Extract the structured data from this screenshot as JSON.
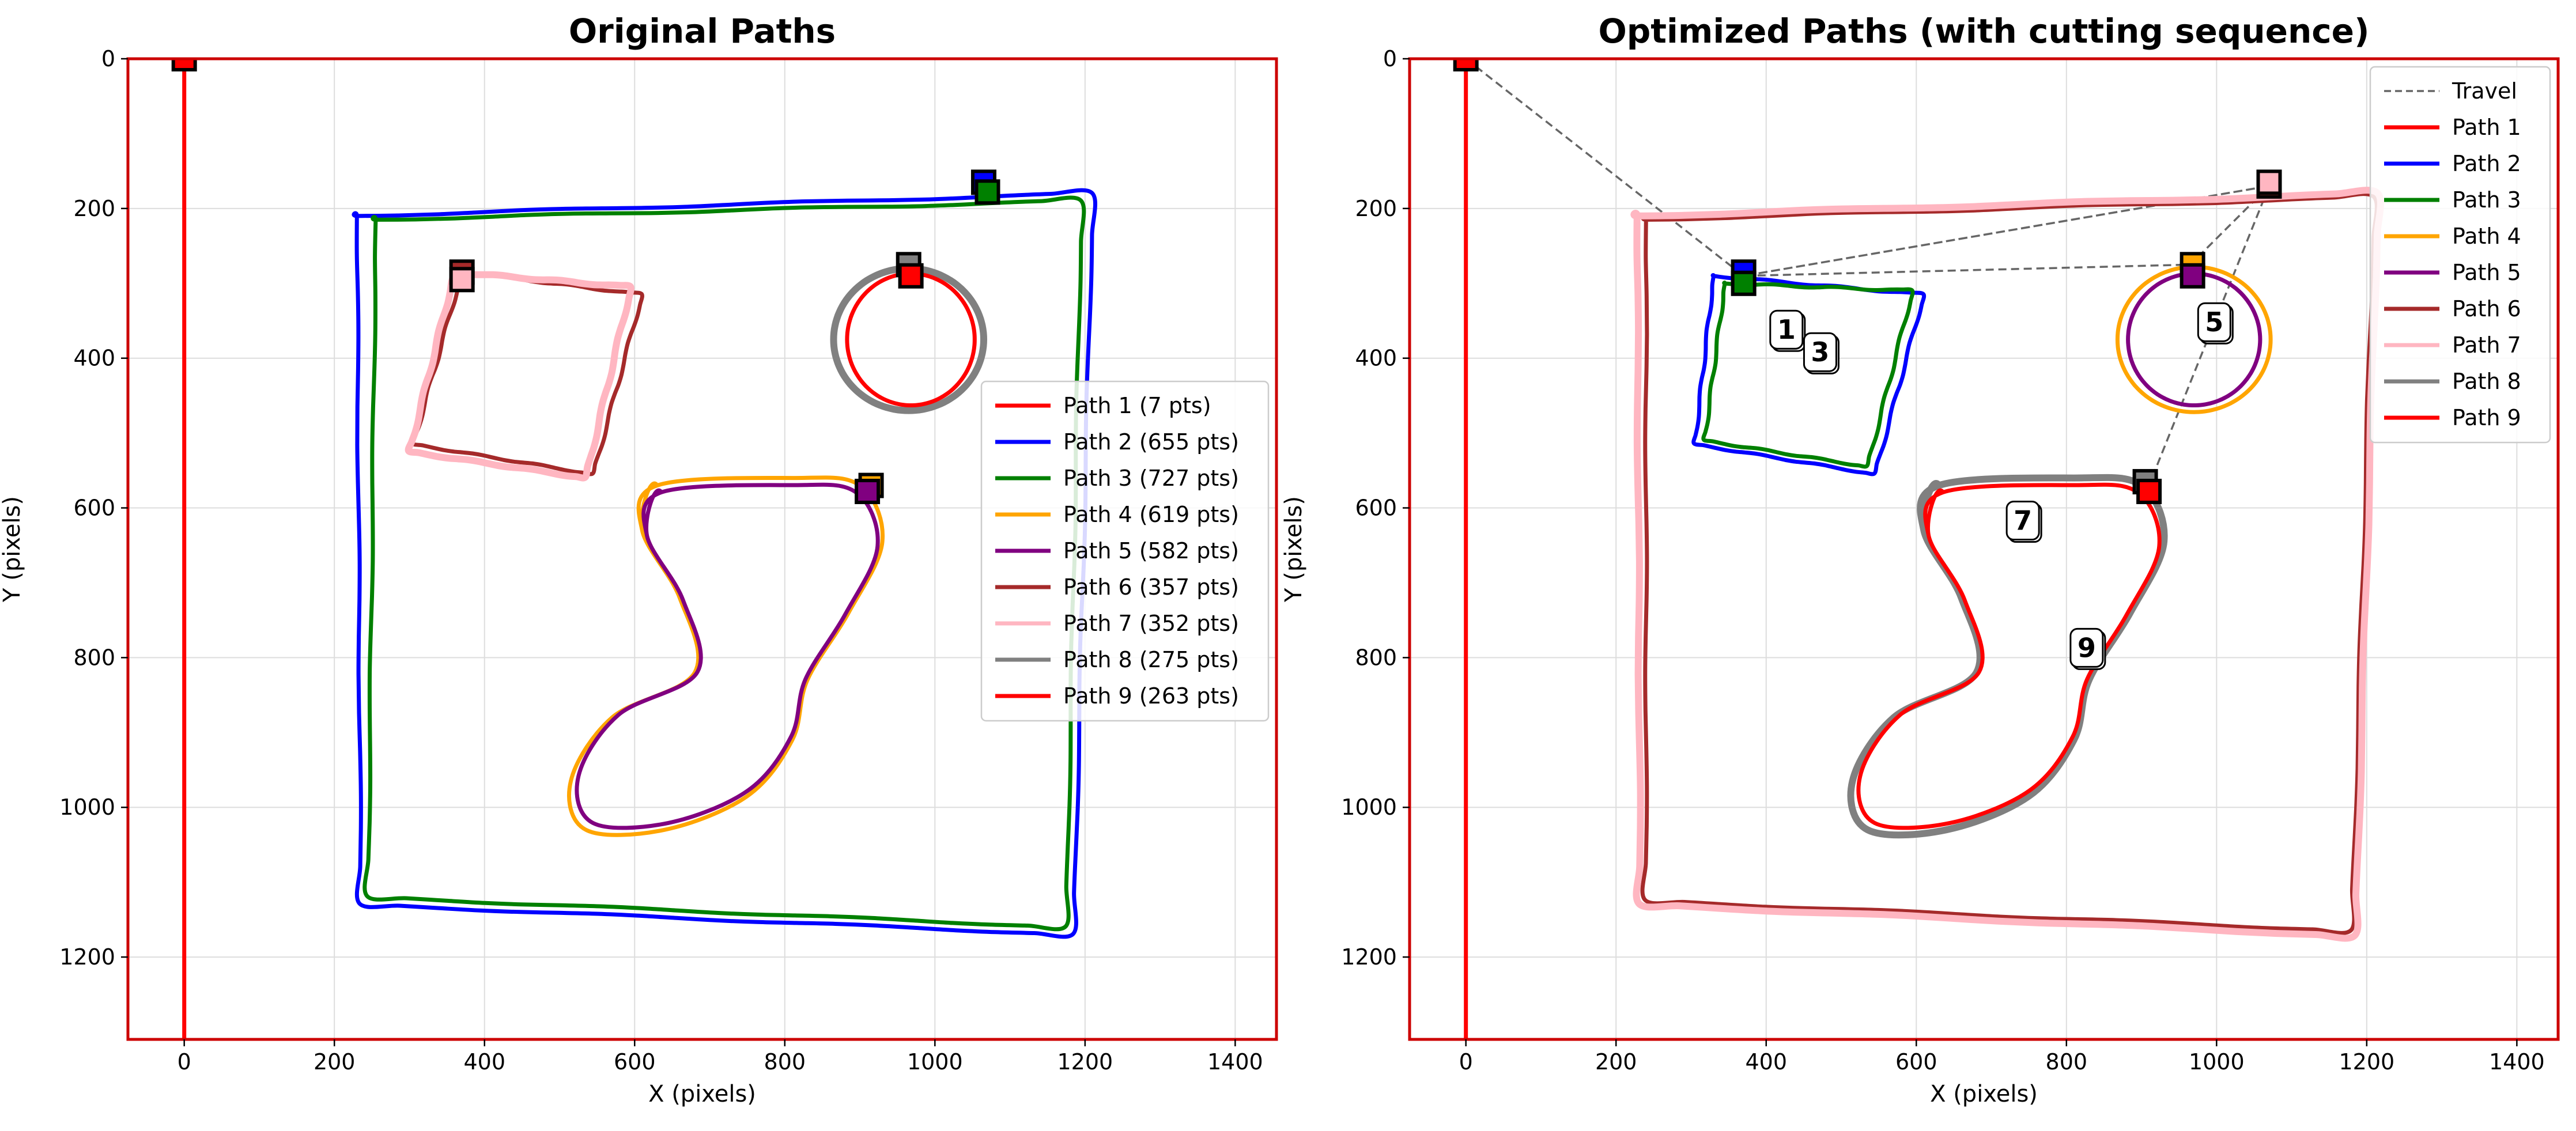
{
  "figure": {
    "panels": [
      "original",
      "optimized"
    ]
  },
  "chart_data": [
    {
      "type": "line",
      "title": "Original Paths",
      "xlabel": "X (pixels)",
      "ylabel": "Y (pixels)",
      "xlim": [
        -75,
        1455
      ],
      "ylim": [
        1310,
        0
      ],
      "x_ticks": [
        0,
        200,
        400,
        600,
        800,
        1000,
        1200,
        1400
      ],
      "y_ticks": [
        0,
        200,
        400,
        600,
        800,
        1000,
        1200
      ],
      "grid": true,
      "legend_position": "center-right",
      "frame_color": "#cc0000",
      "series": [
        {
          "name": "Path 1 (7 pts)",
          "color": "#ff0000",
          "shape": "vline",
          "x": 0,
          "y_range": [
            0,
            1310
          ]
        },
        {
          "name": "Path 2 (655 pts)",
          "color": "#0000ff",
          "shape": "rect",
          "corners": [
            [
              230,
              210
            ],
            [
              1210,
              180
            ],
            [
              1185,
              1170
            ],
            [
              235,
              1130
            ]
          ],
          "start": [
            1065,
            165
          ]
        },
        {
          "name": "Path 3 (727 pts)",
          "color": "#008000",
          "shape": "rect",
          "corners": [
            [
              255,
              215
            ],
            [
              1195,
              190
            ],
            [
              1175,
              1160
            ],
            [
              245,
              1120
            ]
          ],
          "start": [
            1070,
            178
          ]
        },
        {
          "name": "Path 4 (619 pts)",
          "color": "#ffa500",
          "shape": "bean",
          "center": [
            770,
            800
          ],
          "scale": 1.0,
          "start": [
            915,
            570
          ]
        },
        {
          "name": "Path 5 (582 pts)",
          "color": "#800080",
          "shape": "bean",
          "center": [
            770,
            800
          ],
          "scale": 0.96,
          "start": [
            910,
            578
          ]
        },
        {
          "name": "Path 6 (357 pts)",
          "color": "#a52a2a",
          "shape": "rect",
          "corners": [
            [
              370,
              285
            ],
            [
              610,
              315
            ],
            [
              545,
              555
            ],
            [
              305,
              515
            ]
          ],
          "start": [
            370,
            285
          ]
        },
        {
          "name": "Path 7 (352 pts)",
          "color": "#ffb6c1",
          "shape": "rect",
          "corners": [
            [
              360,
              285
            ],
            [
              595,
              305
            ],
            [
              535,
              560
            ],
            [
              300,
              525
            ]
          ],
          "start": [
            370,
            295
          ]
        },
        {
          "name": "Path 8 (275 pts)",
          "color": "#808080",
          "shape": "circle",
          "center": [
            965,
            375
          ],
          "rx": 100,
          "ry": 95,
          "start": [
            965,
            275
          ]
        },
        {
          "name": "Path 9 (263 pts)",
          "color": "#ff0000",
          "shape": "circle",
          "center": [
            968,
            375
          ],
          "rx": 85,
          "ry": 88,
          "start": [
            968,
            290
          ]
        }
      ]
    },
    {
      "type": "line",
      "title": "Optimized Paths (with cutting sequence)",
      "xlabel": "X (pixels)",
      "ylabel": "Y (pixels)",
      "xlim": [
        -75,
        1455
      ],
      "ylim": [
        1310,
        0
      ],
      "x_ticks": [
        0,
        200,
        400,
        600,
        800,
        1000,
        1200,
        1400
      ],
      "y_ticks": [
        0,
        200,
        400,
        600,
        800,
        1000,
        1200
      ],
      "grid": true,
      "legend_position": "top-right",
      "frame_color": "#cc0000",
      "travel": {
        "name": "Travel",
        "color": "#666666",
        "points": [
          [
            0,
            0
          ],
          [
            370,
            290
          ],
          [
            1070,
            170
          ],
          [
            370,
            290
          ],
          [
            965,
            275
          ],
          [
            1070,
            170
          ],
          [
            910,
            570
          ]
        ]
      },
      "series": [
        {
          "name": "Path 1",
          "color": "#ff0000",
          "shape": "vline",
          "x": 0,
          "y_range": [
            0,
            1310
          ]
        },
        {
          "name": "Path 2",
          "color": "#0000ff",
          "shape": "rect",
          "corners": [
            [
              330,
              290
            ],
            [
              610,
              315
            ],
            [
              545,
              555
            ],
            [
              305,
              515
            ]
          ],
          "start": [
            370,
            285
          ]
        },
        {
          "name": "Path 3",
          "color": "#008000",
          "shape": "rect",
          "corners": [
            [
              345,
              300
            ],
            [
              595,
              310
            ],
            [
              535,
              545
            ],
            [
              318,
              510
            ]
          ],
          "start": [
            370,
            300
          ]
        },
        {
          "name": "Path 4",
          "color": "#ffa500",
          "shape": "circle",
          "center": [
            970,
            375
          ],
          "rx": 102,
          "ry": 97,
          "start": [
            968,
            275
          ]
        },
        {
          "name": "Path 5",
          "color": "#800080",
          "shape": "circle",
          "center": [
            970,
            375
          ],
          "rx": 88,
          "ry": 88,
          "start": [
            968,
            290
          ]
        },
        {
          "name": "Path 6",
          "color": "#a52a2a",
          "shape": "rect",
          "corners": [
            [
              240,
              215
            ],
            [
              1210,
              185
            ],
            [
              1180,
              1165
            ],
            [
              240,
              1125
            ]
          ],
          "start": [
            1070,
            170
          ]
        },
        {
          "name": "Path 7",
          "color": "#ffb6c1",
          "shape": "rect",
          "corners": [
            [
              228,
              210
            ],
            [
              1215,
              180
            ],
            [
              1185,
              1172
            ],
            [
              232,
              1130
            ]
          ],
          "start": [
            1070,
            165
          ]
        },
        {
          "name": "Path 8",
          "color": "#808080",
          "shape": "bean",
          "center": [
            770,
            800
          ],
          "scale": 1.0,
          "start": [
            905,
            565
          ]
        },
        {
          "name": "Path 9",
          "color": "#ff0000",
          "shape": "bean",
          "center": [
            770,
            800
          ],
          "scale": 0.96,
          "start": [
            910,
            578
          ]
        }
      ],
      "sequence_labels": [
        {
          "text": "1",
          "x": 430,
          "y": 365
        },
        {
          "text": "3",
          "x": 475,
          "y": 395
        },
        {
          "text": "5",
          "x": 1000,
          "y": 355
        },
        {
          "text": "7",
          "x": 745,
          "y": 620
        },
        {
          "text": "9",
          "x": 830,
          "y": 790
        }
      ]
    }
  ]
}
